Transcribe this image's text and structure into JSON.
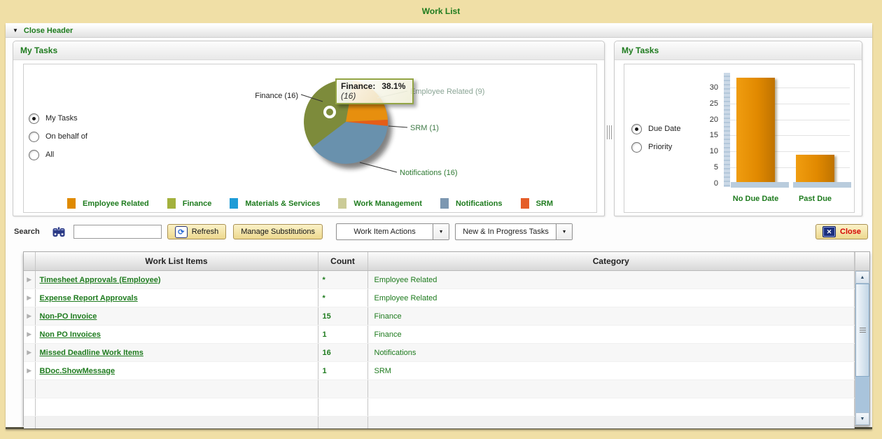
{
  "window": {
    "title": "Work List"
  },
  "header_bar": {
    "label": "Close Header"
  },
  "icons": {
    "collapse": "▼",
    "dropdown": "▼",
    "scroll_up": "▲",
    "scroll_down": "▼",
    "close_x": "✕",
    "row_expand": "▶",
    "refresh": "⟳",
    "search": "binoculars-icon"
  },
  "panels": {
    "pie": {
      "title": "My Tasks",
      "radios": [
        {
          "label": "My Tasks",
          "selected": true
        },
        {
          "label": "On behalf of",
          "selected": false
        },
        {
          "label": "All",
          "selected": false
        }
      ]
    },
    "bar": {
      "title": "My Tasks",
      "radios": [
        {
          "label": "Due Date",
          "selected": true
        },
        {
          "label": "Priority",
          "selected": false
        }
      ]
    }
  },
  "tooltip": {
    "label": "Finance:",
    "percent": "38.1%",
    "count": "(16)"
  },
  "chart_data": [
    {
      "type": "pie",
      "title": "My Tasks",
      "total": 42,
      "start_angle_deg": 10,
      "slices": [
        {
          "label": "Employee Related",
          "value": 9,
          "callout": "Employee Related (9)",
          "color": "#E78F0E"
        },
        {
          "label": "SRM",
          "value": 1,
          "callout": "SRM (1)",
          "color": "#E55D17"
        },
        {
          "label": "Notifications",
          "value": 16,
          "callout": "Notifications (16)",
          "color": "#6991AD"
        },
        {
          "label": "Finance",
          "value": 16,
          "callout": "Finance (16)",
          "color": "#7D8B3B",
          "selected": true,
          "percent": "38.1%"
        }
      ],
      "legend": [
        {
          "label": "Employee Related",
          "color": "#DF8A00"
        },
        {
          "label": "Finance",
          "color": "#A3B13D"
        },
        {
          "label": "Materials & Services",
          "color": "#1E9CD7"
        },
        {
          "label": "Work Management",
          "color": "#CBCB97"
        },
        {
          "label": "Notifications",
          "color": "#7C97B1"
        },
        {
          "label": "SRM",
          "color": "#E55D28"
        }
      ],
      "legend_position": "bottom"
    },
    {
      "type": "bar",
      "categories": [
        "No Due Date",
        "Past Due"
      ],
      "values": [
        33,
        9
      ],
      "bar_color": "#E18900",
      "yticks": [
        0,
        5,
        10,
        15,
        20,
        25,
        30
      ],
      "ylim": [
        0,
        35
      ],
      "grid": true,
      "xlabel": "",
      "ylabel": ""
    }
  ],
  "toolbar": {
    "search_label": "Search",
    "search_value": "",
    "search_placeholder": "",
    "refresh_label": "Refresh",
    "manage_label": "Manage Substitutions",
    "work_item_actions": "Work Item Actions",
    "task_filter": "New & In Progress Tasks",
    "close_label": "Close"
  },
  "table": {
    "columns": [
      "Work List Items",
      "Count",
      "Category"
    ],
    "rows": [
      {
        "item": "Timesheet Approvals (Employee)",
        "count": "*",
        "category": "Employee Related"
      },
      {
        "item": "Expense Report Approvals",
        "count": "*",
        "category": "Employee Related"
      },
      {
        "item": "Non-PO Invoice",
        "count": "15",
        "category": "Finance"
      },
      {
        "item": "Non PO Invoices",
        "count": "1",
        "category": "Finance"
      },
      {
        "item": "Missed Deadline Work Items",
        "count": "16",
        "category": "Notifications"
      },
      {
        "item": "BDoc.ShowMessage",
        "count": "1",
        "category": "SRM"
      }
    ],
    "empty_rows": 2
  },
  "colors": {
    "frame_tan": "#F0DFA6",
    "accent_green": "#1E7B1E",
    "bar_orange": "#E18900",
    "link_green": "#1E7B1E"
  }
}
